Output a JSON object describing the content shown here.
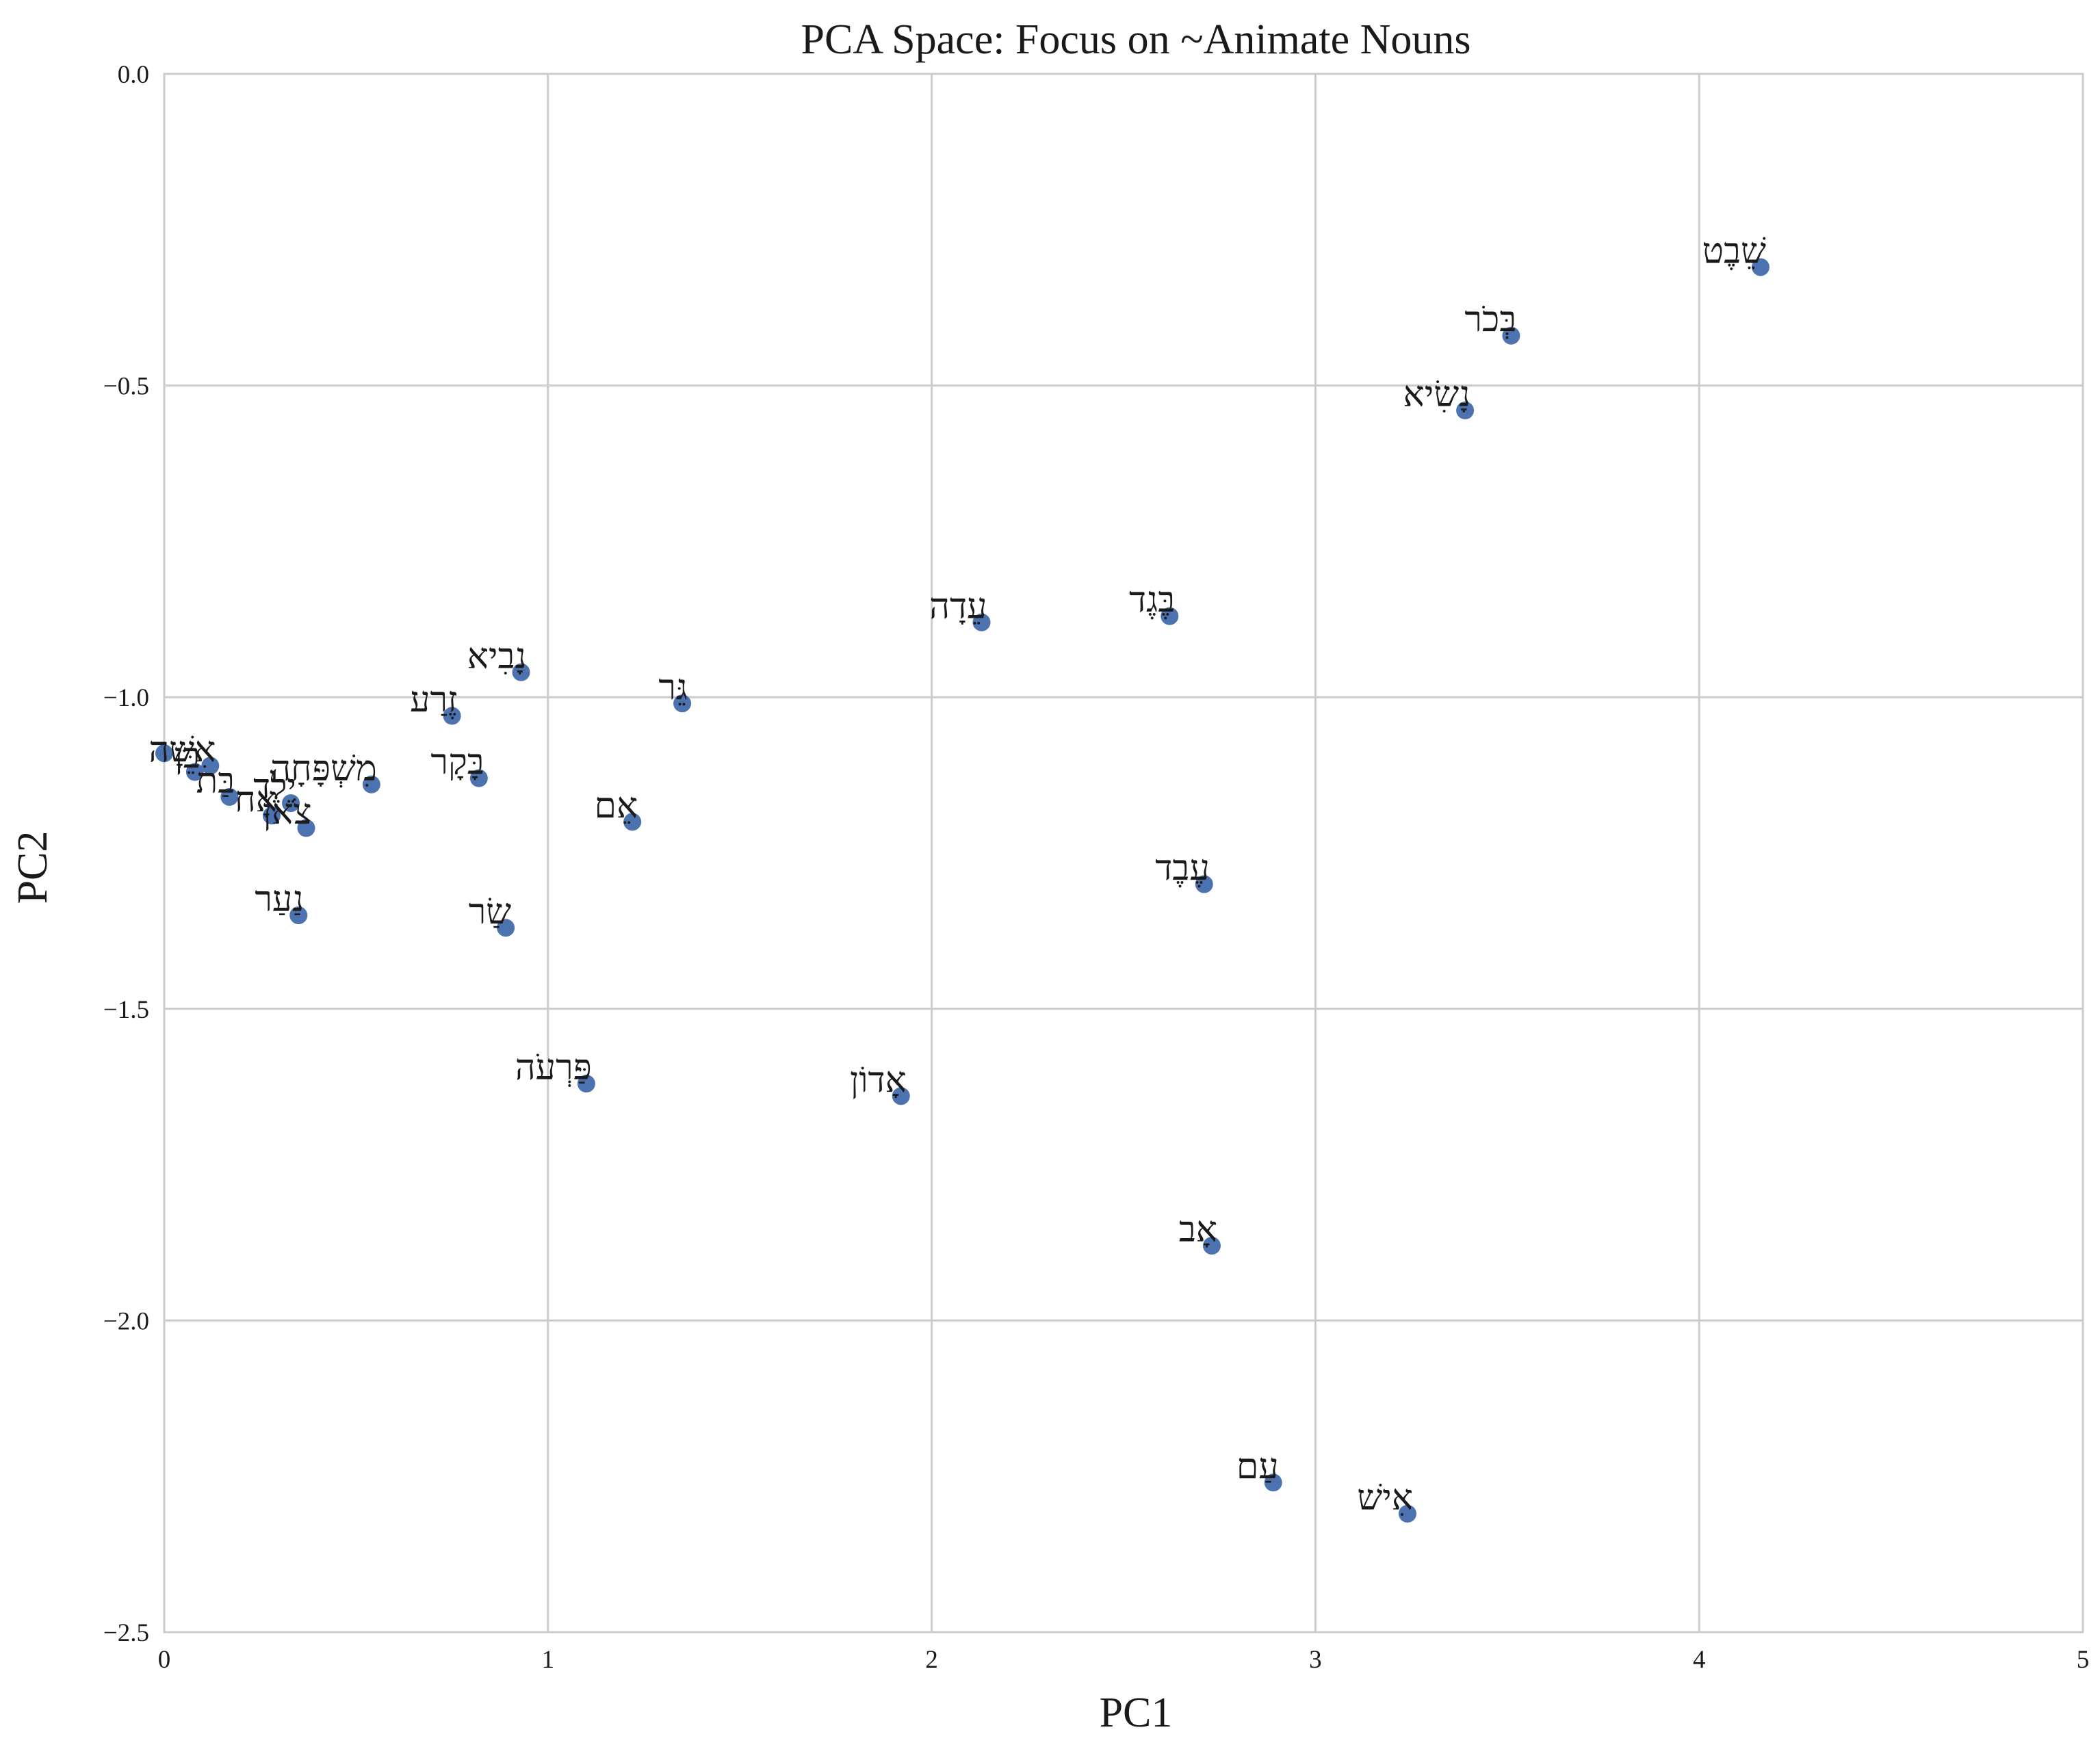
{
  "chart_data": {
    "type": "scatter",
    "title": "PCA Space: Focus on ~Animate Nouns",
    "xlabel": "PC1",
    "ylabel": "PC2",
    "xlim": [
      0,
      5
    ],
    "ylim": [
      -2.5,
      0.0
    ],
    "xticks": [
      0,
      1,
      2,
      3,
      4,
      5
    ],
    "xtick_labels": [
      "0",
      "1",
      "2",
      "3",
      "4",
      "5"
    ],
    "yticks": [
      0.0,
      -0.5,
      -1.0,
      -1.5,
      -2.0,
      -2.5
    ],
    "ytick_labels": [
      "0.0",
      "−0.5",
      "−1.0",
      "−1.5",
      "−2.0",
      "−2.5"
    ],
    "grid": true,
    "point_color": "#4c72b0",
    "points": [
      {
        "label": "שֵׁבֶט",
        "x": 4.16,
        "y": -0.31
      },
      {
        "label": "בְּכֹר",
        "x": 3.51,
        "y": -0.42
      },
      {
        "label": "נָשִׂיא",
        "x": 3.39,
        "y": -0.54
      },
      {
        "label": "עֵדָה",
        "x": 2.13,
        "y": -0.88
      },
      {
        "label": "בֶּגֶד",
        "x": 2.62,
        "y": -0.87
      },
      {
        "label": "נָבִיא",
        "x": 0.93,
        "y": -0.96
      },
      {
        "label": "גֵּר",
        "x": 1.35,
        "y": -1.01
      },
      {
        "label": "זֶרַע",
        "x": 0.75,
        "y": -1.03
      },
      {
        "label": "אֵם",
        "x": 1.22,
        "y": -1.2
      },
      {
        "label": "עֶבֶד",
        "x": 2.71,
        "y": -1.3
      },
      {
        "label": "מִשְׁפָּחָה",
        "x": 0.54,
        "y": -1.14
      },
      {
        "label": "בָּקָר",
        "x": 0.82,
        "y": -1.13
      },
      {
        "label": "נַעַר",
        "x": 0.35,
        "y": -1.35
      },
      {
        "label": "שַׂר",
        "x": 0.89,
        "y": -1.37
      },
      {
        "label": "פַּרְעֹה",
        "x": 1.1,
        "y": -1.62
      },
      {
        "label": "אָדוֹן",
        "x": 1.92,
        "y": -1.64
      },
      {
        "label": "אָב",
        "x": 2.73,
        "y": -1.88
      },
      {
        "label": "עַם",
        "x": 2.89,
        "y": -2.26
      },
      {
        "label": "אִישׁ",
        "x": 3.24,
        "y": -2.31
      },
      {
        "label": "צֹאן",
        "x": 0.37,
        "y": -1.21
      },
      {
        "label": "יֶלֶד",
        "x": 0.33,
        "y": -1.17
      },
      {
        "label": "אָח",
        "x": 0.28,
        "y": -1.19
      },
      {
        "label": "בַּת",
        "x": 0.17,
        "y": -1.16
      },
      {
        "label": "אִשָּׁה",
        "x": 0.12,
        "y": -1.11
      },
      {
        "label": "בֵּן",
        "x": 0.08,
        "y": -1.12
      },
      {
        "label": "",
        "x": 0.0,
        "y": -1.09
      }
    ]
  }
}
